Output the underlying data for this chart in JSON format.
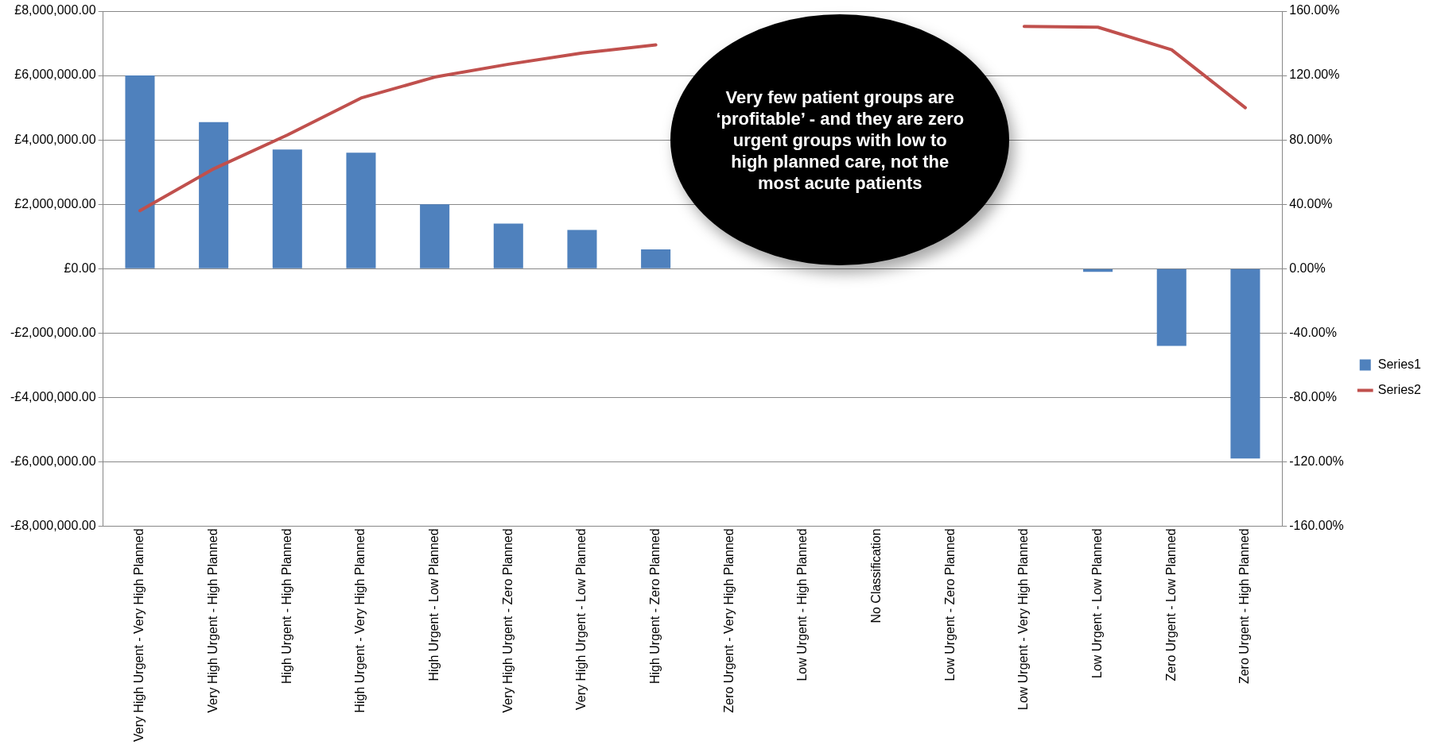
{
  "chart_data": {
    "type": "bar",
    "categories": [
      "Very High Urgent - Very High Planned",
      "Very High Urgent - High Planned",
      "High Urgent - High Planned",
      "High Urgent - Very High Planned",
      "High Urgent - Low Planned",
      "Very High Urgent - Zero Planned",
      "Very High Urgent - Low Planned",
      "High Urgent - Zero Planned",
      "Zero Urgent - Very High Planned",
      "Low Urgent - High Planned",
      "No Classification",
      "Low Urgent - Zero Planned",
      "Low Urgent - Very High Planned",
      "Low Urgent - Low Planned",
      "Zero Urgent - Low Planned",
      "Zero Urgent - High Planned"
    ],
    "series": [
      {
        "name": "Series1",
        "color": "#4f81bd",
        "values": [
          6000000,
          4550000,
          3700000,
          3600000,
          2000000,
          1400000,
          1200000,
          600000,
          null,
          null,
          null,
          null,
          null,
          -100000,
          -2400000,
          -5900000
        ]
      },
      {
        "name": "Series2",
        "type": "line",
        "axis": "y2",
        "color": "#c0504d",
        "values": [
          36,
          62,
          83,
          106,
          119,
          127,
          134,
          139,
          null,
          null,
          null,
          null,
          150.5,
          150,
          136,
          100
        ]
      }
    ],
    "ylim": [
      -8000000,
      8000000
    ],
    "yticks": [
      {
        "value": -8000000,
        "label": "-£8,000,000.00"
      },
      {
        "value": -6000000,
        "label": "-£6,000,000.00"
      },
      {
        "value": -4000000,
        "label": "-£4,000,000.00"
      },
      {
        "value": -2000000,
        "label": "-£2,000,000.00"
      },
      {
        "value": 0,
        "label": "£0.00"
      },
      {
        "value": 2000000,
        "label": "£2,000,000.00"
      },
      {
        "value": 4000000,
        "label": "£4,000,000.00"
      },
      {
        "value": 6000000,
        "label": "£6,000,000.00"
      },
      {
        "value": 8000000,
        "label": "£8,000,000.00"
      }
    ],
    "y2lim": [
      -160,
      160
    ],
    "y2ticks": [
      {
        "value": -160,
        "label": "-160.00%"
      },
      {
        "value": -120,
        "label": "-120.00%"
      },
      {
        "value": -80,
        "label": "-80.00%"
      },
      {
        "value": -40,
        "label": "-40.00%"
      },
      {
        "value": 0,
        "label": "0.00%"
      },
      {
        "value": 40,
        "label": "40.00%"
      },
      {
        "value": 80,
        "label": "80.00%"
      },
      {
        "value": 120,
        "label": "120.00%"
      },
      {
        "value": 160,
        "label": "160.00%"
      }
    ],
    "grid": "y",
    "legend": "right",
    "marker": "none",
    "annotations": [
      "Very few patient groups are ‘profitable’  - and they are zero urgent groups with low to high planned care, not the most acute patients"
    ]
  }
}
